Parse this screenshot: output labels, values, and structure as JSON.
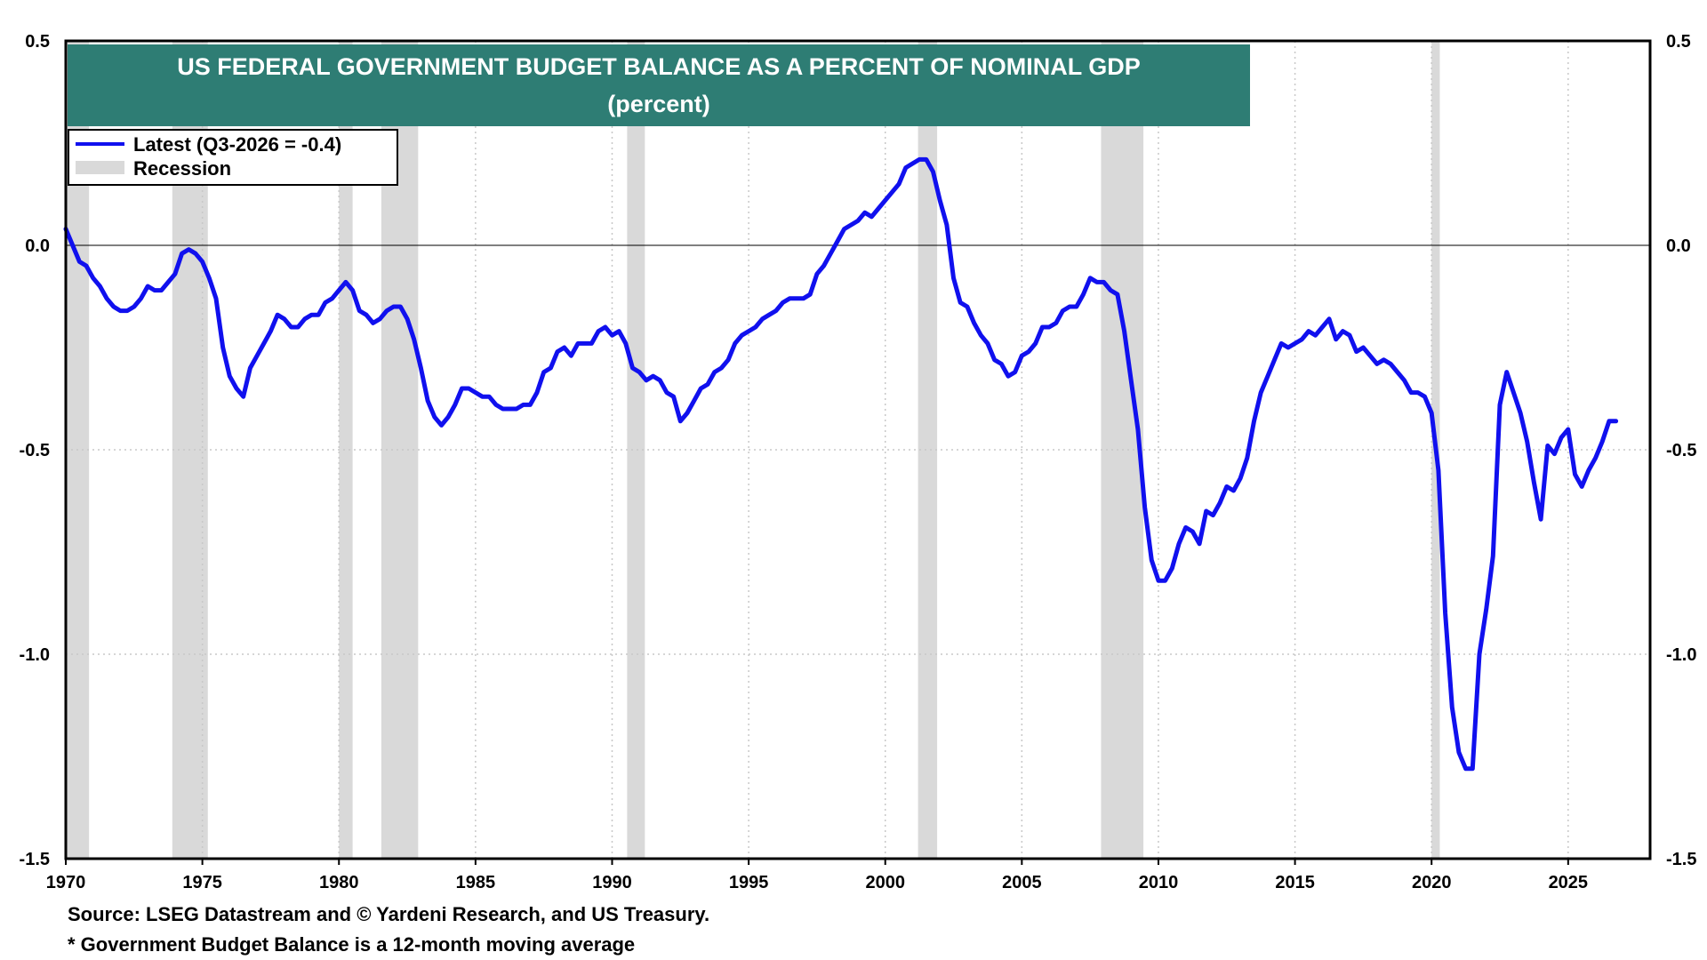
{
  "colors": {
    "line": "#1010ee",
    "recession": "#d9d9d9",
    "title_bg": "#2e7d74",
    "grid": "#c8c8c8"
  },
  "chart_data": {
    "type": "line",
    "title": "US FEDERAL GOVERNMENT BUDGET BALANCE AS A PERCENT OF NOMINAL GDP",
    "subtitle": "(percent)",
    "xlim": [
      1970,
      2028
    ],
    "ylim": [
      -1.5,
      0.5
    ],
    "x_ticks": [
      1970,
      1975,
      1980,
      1985,
      1990,
      1995,
      2000,
      2005,
      2010,
      2015,
      2020,
      2025
    ],
    "x_tick_labels": [
      "1970",
      "1975",
      "1980",
      "1985",
      "1990",
      "1995",
      "2000",
      "2005",
      "2010",
      "2015",
      "2020",
      "2025"
    ],
    "y_ticks": [
      0.5,
      0.0,
      -0.5,
      -1.0,
      -1.5
    ],
    "y_tick_labels": [
      "0.5",
      "0.0",
      "-0.5",
      "-1.0",
      "-1.5"
    ],
    "grid": true,
    "legend_position": "top-left",
    "legend": [
      {
        "label": "Latest (Q3-2026 = -0.4)",
        "kind": "line"
      },
      {
        "label": "Recession",
        "kind": "band"
      }
    ],
    "recessions": [
      [
        1970.0,
        1970.85
      ],
      [
        1973.9,
        1975.2
      ],
      [
        1980.0,
        1980.5
      ],
      [
        1981.55,
        1982.9
      ],
      [
        1990.55,
        1991.2
      ],
      [
        2001.2,
        2001.9
      ],
      [
        2007.9,
        2009.45
      ],
      [
        2020.0,
        2020.3
      ]
    ],
    "series": [
      {
        "name": "Latest (Q3-2026 = -0.4)",
        "points": [
          [
            1970.0,
            0.04
          ],
          [
            1970.25,
            0.0
          ],
          [
            1970.5,
            -0.04
          ],
          [
            1970.75,
            -0.05
          ],
          [
            1971.0,
            -0.08
          ],
          [
            1971.25,
            -0.1
          ],
          [
            1971.5,
            -0.13
          ],
          [
            1971.75,
            -0.15
          ],
          [
            1972.0,
            -0.16
          ],
          [
            1972.25,
            -0.16
          ],
          [
            1972.5,
            -0.15
          ],
          [
            1972.75,
            -0.13
          ],
          [
            1973.0,
            -0.1
          ],
          [
            1973.25,
            -0.11
          ],
          [
            1973.5,
            -0.11
          ],
          [
            1973.75,
            -0.09
          ],
          [
            1974.0,
            -0.07
          ],
          [
            1974.25,
            -0.02
          ],
          [
            1974.5,
            -0.01
          ],
          [
            1974.75,
            -0.02
          ],
          [
            1975.0,
            -0.04
          ],
          [
            1975.25,
            -0.08
          ],
          [
            1975.5,
            -0.13
          ],
          [
            1975.75,
            -0.25
          ],
          [
            1976.0,
            -0.32
          ],
          [
            1976.25,
            -0.35
          ],
          [
            1976.5,
            -0.37
          ],
          [
            1976.75,
            -0.3
          ],
          [
            1977.0,
            -0.27
          ],
          [
            1977.25,
            -0.24
          ],
          [
            1977.5,
            -0.21
          ],
          [
            1977.75,
            -0.17
          ],
          [
            1978.0,
            -0.18
          ],
          [
            1978.25,
            -0.2
          ],
          [
            1978.5,
            -0.2
          ],
          [
            1978.75,
            -0.18
          ],
          [
            1979.0,
            -0.17
          ],
          [
            1979.25,
            -0.17
          ],
          [
            1979.5,
            -0.14
          ],
          [
            1979.75,
            -0.13
          ],
          [
            1980.0,
            -0.11
          ],
          [
            1980.25,
            -0.09
          ],
          [
            1980.5,
            -0.11
          ],
          [
            1980.75,
            -0.16
          ],
          [
            1981.0,
            -0.17
          ],
          [
            1981.25,
            -0.19
          ],
          [
            1981.5,
            -0.18
          ],
          [
            1981.75,
            -0.16
          ],
          [
            1982.0,
            -0.15
          ],
          [
            1982.25,
            -0.15
          ],
          [
            1982.5,
            -0.18
          ],
          [
            1982.75,
            -0.23
          ],
          [
            1983.0,
            -0.3
          ],
          [
            1983.25,
            -0.38
          ],
          [
            1983.5,
            -0.42
          ],
          [
            1983.75,
            -0.44
          ],
          [
            1984.0,
            -0.42
          ],
          [
            1984.25,
            -0.39
          ],
          [
            1984.5,
            -0.35
          ],
          [
            1984.75,
            -0.35
          ],
          [
            1985.0,
            -0.36
          ],
          [
            1985.25,
            -0.37
          ],
          [
            1985.5,
            -0.37
          ],
          [
            1985.75,
            -0.39
          ],
          [
            1986.0,
            -0.4
          ],
          [
            1986.25,
            -0.4
          ],
          [
            1986.5,
            -0.4
          ],
          [
            1986.75,
            -0.39
          ],
          [
            1987.0,
            -0.39
          ],
          [
            1987.25,
            -0.36
          ],
          [
            1987.5,
            -0.31
          ],
          [
            1987.75,
            -0.3
          ],
          [
            1988.0,
            -0.26
          ],
          [
            1988.25,
            -0.25
          ],
          [
            1988.5,
            -0.27
          ],
          [
            1988.75,
            -0.24
          ],
          [
            1989.0,
            -0.24
          ],
          [
            1989.25,
            -0.24
          ],
          [
            1989.5,
            -0.21
          ],
          [
            1989.75,
            -0.2
          ],
          [
            1990.0,
            -0.22
          ],
          [
            1990.25,
            -0.21
          ],
          [
            1990.5,
            -0.24
          ],
          [
            1990.75,
            -0.3
          ],
          [
            1991.0,
            -0.31
          ],
          [
            1991.25,
            -0.33
          ],
          [
            1991.5,
            -0.32
          ],
          [
            1991.75,
            -0.33
          ],
          [
            1992.0,
            -0.36
          ],
          [
            1992.25,
            -0.37
          ],
          [
            1992.5,
            -0.43
          ],
          [
            1992.75,
            -0.41
          ],
          [
            1993.0,
            -0.38
          ],
          [
            1993.25,
            -0.35
          ],
          [
            1993.5,
            -0.34
          ],
          [
            1993.75,
            -0.31
          ],
          [
            1994.0,
            -0.3
          ],
          [
            1994.25,
            -0.28
          ],
          [
            1994.5,
            -0.24
          ],
          [
            1994.75,
            -0.22
          ],
          [
            1995.0,
            -0.21
          ],
          [
            1995.25,
            -0.2
          ],
          [
            1995.5,
            -0.18
          ],
          [
            1995.75,
            -0.17
          ],
          [
            1996.0,
            -0.16
          ],
          [
            1996.25,
            -0.14
          ],
          [
            1996.5,
            -0.13
          ],
          [
            1996.75,
            -0.13
          ],
          [
            1997.0,
            -0.13
          ],
          [
            1997.25,
            -0.12
          ],
          [
            1997.5,
            -0.07
          ],
          [
            1997.75,
            -0.05
          ],
          [
            1998.0,
            -0.02
          ],
          [
            1998.25,
            0.01
          ],
          [
            1998.5,
            0.04
          ],
          [
            1998.75,
            0.05
          ],
          [
            1999.0,
            0.06
          ],
          [
            1999.25,
            0.08
          ],
          [
            1999.5,
            0.07
          ],
          [
            1999.75,
            0.09
          ],
          [
            2000.0,
            0.11
          ],
          [
            2000.25,
            0.13
          ],
          [
            2000.5,
            0.15
          ],
          [
            2000.75,
            0.19
          ],
          [
            2001.0,
            0.2
          ],
          [
            2001.25,
            0.21
          ],
          [
            2001.5,
            0.21
          ],
          [
            2001.75,
            0.18
          ],
          [
            2002.0,
            0.11
          ],
          [
            2002.25,
            0.05
          ],
          [
            2002.5,
            -0.08
          ],
          [
            2002.75,
            -0.14
          ],
          [
            2003.0,
            -0.15
          ],
          [
            2003.25,
            -0.19
          ],
          [
            2003.5,
            -0.22
          ],
          [
            2003.75,
            -0.24
          ],
          [
            2004.0,
            -0.28
          ],
          [
            2004.25,
            -0.29
          ],
          [
            2004.5,
            -0.32
          ],
          [
            2004.75,
            -0.31
          ],
          [
            2005.0,
            -0.27
          ],
          [
            2005.25,
            -0.26
          ],
          [
            2005.5,
            -0.24
          ],
          [
            2005.75,
            -0.2
          ],
          [
            2006.0,
            -0.2
          ],
          [
            2006.25,
            -0.19
          ],
          [
            2006.5,
            -0.16
          ],
          [
            2006.75,
            -0.15
          ],
          [
            2007.0,
            -0.15
          ],
          [
            2007.25,
            -0.12
          ],
          [
            2007.5,
            -0.08
          ],
          [
            2007.75,
            -0.09
          ],
          [
            2008.0,
            -0.09
          ],
          [
            2008.25,
            -0.11
          ],
          [
            2008.5,
            -0.12
          ],
          [
            2008.75,
            -0.21
          ],
          [
            2009.0,
            -0.33
          ],
          [
            2009.25,
            -0.45
          ],
          [
            2009.5,
            -0.64
          ],
          [
            2009.75,
            -0.77
          ],
          [
            2010.0,
            -0.82
          ],
          [
            2010.25,
            -0.82
          ],
          [
            2010.5,
            -0.79
          ],
          [
            2010.75,
            -0.73
          ],
          [
            2011.0,
            -0.69
          ],
          [
            2011.25,
            -0.7
          ],
          [
            2011.5,
            -0.73
          ],
          [
            2011.75,
            -0.65
          ],
          [
            2012.0,
            -0.66
          ],
          [
            2012.25,
            -0.63
          ],
          [
            2012.5,
            -0.59
          ],
          [
            2012.75,
            -0.6
          ],
          [
            2013.0,
            -0.57
          ],
          [
            2013.25,
            -0.52
          ],
          [
            2013.5,
            -0.43
          ],
          [
            2013.75,
            -0.36
          ],
          [
            2014.0,
            -0.32
          ],
          [
            2014.25,
            -0.28
          ],
          [
            2014.5,
            -0.24
          ],
          [
            2014.75,
            -0.25
          ],
          [
            2015.0,
            -0.24
          ],
          [
            2015.25,
            -0.23
          ],
          [
            2015.5,
            -0.21
          ],
          [
            2015.75,
            -0.22
          ],
          [
            2016.0,
            -0.2
          ],
          [
            2016.25,
            -0.18
          ],
          [
            2016.5,
            -0.23
          ],
          [
            2016.75,
            -0.21
          ],
          [
            2017.0,
            -0.22
          ],
          [
            2017.25,
            -0.26
          ],
          [
            2017.5,
            -0.25
          ],
          [
            2017.75,
            -0.27
          ],
          [
            2018.0,
            -0.29
          ],
          [
            2018.25,
            -0.28
          ],
          [
            2018.5,
            -0.29
          ],
          [
            2018.75,
            -0.31
          ],
          [
            2019.0,
            -0.33
          ],
          [
            2019.25,
            -0.36
          ],
          [
            2019.5,
            -0.36
          ],
          [
            2019.75,
            -0.37
          ],
          [
            2020.0,
            -0.41
          ],
          [
            2020.25,
            -0.55
          ],
          [
            2020.5,
            -0.9
          ],
          [
            2020.75,
            -1.13
          ],
          [
            2021.0,
            -1.24
          ],
          [
            2021.25,
            -1.28
          ],
          [
            2021.5,
            -1.28
          ],
          [
            2021.75,
            -1.0
          ],
          [
            2022.0,
            -0.89
          ],
          [
            2022.25,
            -0.76
          ],
          [
            2022.5,
            -0.39
          ],
          [
            2022.75,
            -0.31
          ],
          [
            2023.0,
            -0.36
          ],
          [
            2023.25,
            -0.41
          ],
          [
            2023.5,
            -0.48
          ],
          [
            2023.75,
            -0.58
          ],
          [
            2024.0,
            -0.67
          ],
          [
            2024.25,
            -0.49
          ],
          [
            2024.5,
            -0.51
          ],
          [
            2024.75,
            -0.47
          ],
          [
            2025.0,
            -0.45
          ],
          [
            2025.25,
            -0.56
          ],
          [
            2025.5,
            -0.59
          ],
          [
            2025.75,
            -0.55
          ],
          [
            2026.0,
            -0.52
          ],
          [
            2026.25,
            -0.48
          ],
          [
            2026.5,
            -0.43
          ],
          [
            2026.75,
            -0.43
          ]
        ]
      }
    ]
  },
  "footnotes": {
    "source": "Source: LSEG Datastream and © Yardeni Research, and US Treasury.",
    "note": "* Government Budget Balance is a 12-month moving average"
  }
}
